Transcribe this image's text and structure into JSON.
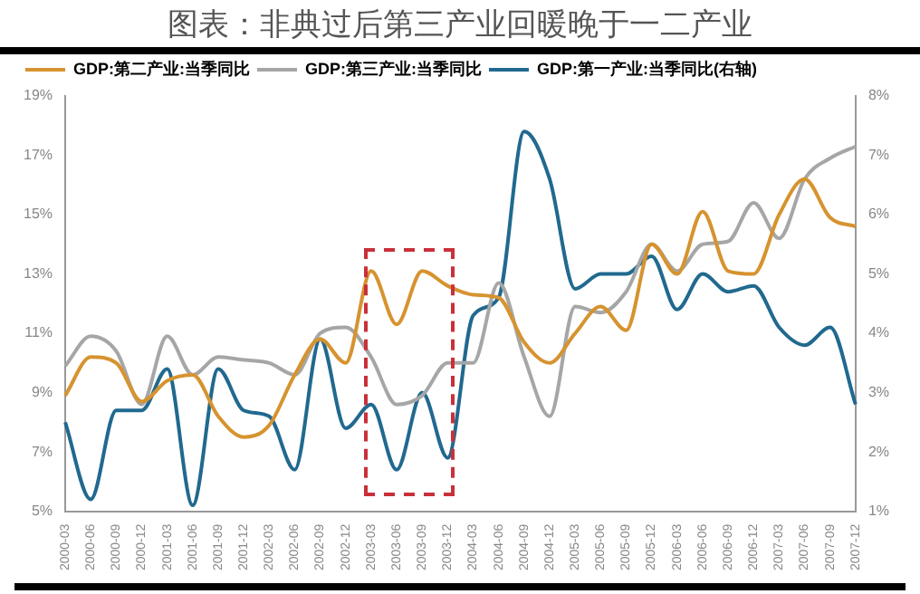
{
  "chart_data": {
    "type": "line",
    "title": "图表：非典过后第三产业回暖晚于一二产业",
    "categories": [
      "2000-03",
      "2000-06",
      "2000-09",
      "2000-12",
      "2001-03",
      "2001-06",
      "2001-09",
      "2001-12",
      "2002-03",
      "2002-06",
      "2002-09",
      "2002-12",
      "2003-03",
      "2003-06",
      "2003-09",
      "2003-12",
      "2004-03",
      "2004-06",
      "2004-09",
      "2004-12",
      "2005-03",
      "2005-06",
      "2005-09",
      "2005-12",
      "2006-03",
      "2006-06",
      "2006-09",
      "2006-12",
      "2007-03",
      "2007-06",
      "2007-09",
      "2007-12"
    ],
    "series": [
      {
        "name": "GDP:第二产业:当季同比",
        "color": "#d6932f",
        "values": [
          8.9,
          10.2,
          10.0,
          8.7,
          9.4,
          9.6,
          8.2,
          7.5,
          7.9,
          9.6,
          10.8,
          10.0,
          13.1,
          11.3,
          13.1,
          12.6,
          12.3,
          12.2,
          10.7,
          10.0,
          11.0,
          11.9,
          11.1,
          14.0,
          13.0,
          15.1,
          13.1,
          13.0,
          15.0,
          16.2,
          14.9,
          14.6
        ]
      },
      {
        "name": "GDP:第三产业:当季同比",
        "color": "#a6a6a6",
        "values": [
          9.9,
          10.9,
          10.4,
          8.6,
          10.9,
          9.6,
          10.2,
          10.1,
          10.0,
          9.6,
          11.0,
          11.2,
          10.2,
          8.6,
          8.9,
          10.0,
          10.0,
          12.7,
          10.2,
          8.2,
          11.9,
          11.7,
          12.4,
          14.0,
          13.1,
          14.0,
          14.1,
          15.4,
          14.2,
          16.2,
          16.9,
          17.3
        ]
      },
      {
        "name": "GDP:第一产业:当季同比(右轴)",
        "color": "#21698f",
        "axis": "y2",
        "values": [
          2.5,
          1.2,
          2.7,
          2.7,
          3.4,
          1.1,
          3.4,
          2.7,
          2.6,
          1.7,
          3.9,
          2.4,
          2.8,
          1.7,
          3.0,
          1.9,
          4.3,
          4.6,
          7.4,
          6.6,
          4.75,
          5.0,
          5.0,
          5.3,
          4.4,
          5.0,
          4.7,
          4.8,
          4.1,
          3.8,
          4.1,
          2.8
        ]
      }
    ],
    "ylim": [
      5,
      19
    ],
    "yticks": [
      {
        "value": 5,
        "label": "5%"
      },
      {
        "value": 7,
        "label": "7%"
      },
      {
        "value": 9,
        "label": "9%"
      },
      {
        "value": 11,
        "label": "11%"
      },
      {
        "value": 13,
        "label": "13%"
      },
      {
        "value": 15,
        "label": "15%"
      },
      {
        "value": 17,
        "label": "17%"
      },
      {
        "value": 19,
        "label": "19%"
      }
    ],
    "y2lim": [
      1,
      8
    ],
    "y2ticks": [
      {
        "value": 1,
        "label": "1%"
      },
      {
        "value": 2,
        "label": "2%"
      },
      {
        "value": 3,
        "label": "3%"
      },
      {
        "value": 4,
        "label": "4%"
      },
      {
        "value": 5,
        "label": "5%"
      },
      {
        "value": 6,
        "label": "6%"
      },
      {
        "value": 7,
        "label": "7%"
      },
      {
        "value": 8,
        "label": "8%"
      }
    ],
    "legend": "top",
    "marker": "none",
    "line_style": "solid"
  }
}
